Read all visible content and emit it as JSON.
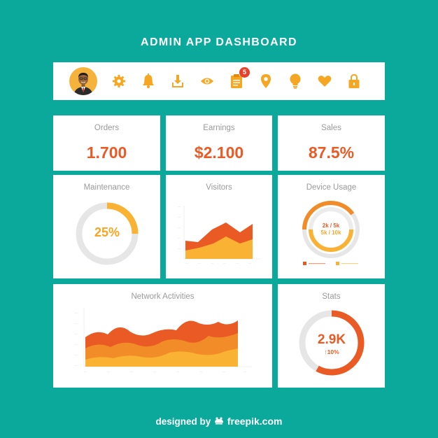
{
  "header": {
    "title": "ADMIN APP DASHBOARD"
  },
  "toolbar": {
    "avatar": "user-avatar",
    "icons": [
      "gear-icon",
      "bell-icon",
      "download-icon",
      "eye-icon",
      "clipboard-icon",
      "location-pin-icon",
      "lightbulb-icon",
      "heart-icon",
      "lock-icon"
    ],
    "notification_count": "5",
    "icon_color": "#f5a623"
  },
  "cards": {
    "orders": {
      "label": "Orders",
      "value": "1.700"
    },
    "earnings": {
      "label": "Earnings",
      "value": "$2.100"
    },
    "sales": {
      "label": "Sales",
      "value": "87.5%"
    },
    "maintenance": {
      "label": "Maintenance",
      "value": "25%",
      "fraction": 0.25
    },
    "visitors": {
      "label": "Visitors"
    },
    "device_usage": {
      "label": "Device Usage",
      "value_line1": "2k / 5k",
      "value_line2": "5k / 10k",
      "outer_fraction": 0.4,
      "inner_fraction": 0.5
    },
    "network": {
      "label": "Network Activities"
    },
    "stats": {
      "label": "Stats",
      "value": "2.9K",
      "change": "↑10%",
      "fraction": 0.58
    }
  },
  "colors": {
    "background": "#0aa99b",
    "orange_dark": "#ea5a24",
    "orange": "#f28c28",
    "yellow": "#f9b233",
    "track": "#e6e6e6"
  },
  "footer": {
    "prefix": "designed by",
    "brand": "freepik",
    "suffix": ".com"
  }
}
